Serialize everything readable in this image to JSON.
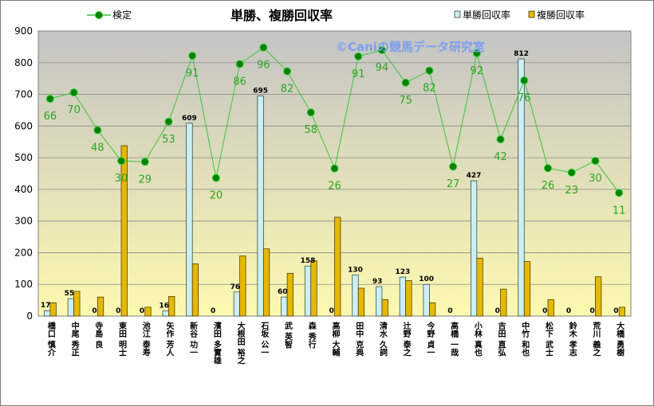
{
  "chart_data": {
    "type": "bar",
    "title": "単勝、複勝回収率",
    "watermark": "©Caniの競馬データ研究室",
    "ylim": [
      0,
      900
    ],
    "yticks": [
      0,
      100,
      200,
      300,
      400,
      500,
      600,
      700,
      800,
      900
    ],
    "categories": [
      "橋口 慎介",
      "中尾 秀正",
      "寺島 良",
      "東田 明士",
      "池江 泰寿",
      "矢作 芳人",
      "新谷 功一",
      "濱田 多實雄",
      "大根田 裕之",
      "石坂 公一",
      "武 英智",
      "森 秀行",
      "高柳 大輔",
      "田中 克典",
      "清水 久詞",
      "辻野 泰之",
      "今野 貞一",
      "高橋 一哉",
      "小林 真也",
      "吉田 直弘",
      "中竹 和也",
      "松下 武士",
      "鈴木 孝志",
      "荒川 義之",
      "大橋 勇樹"
    ],
    "series": [
      {
        "name": "単勝回収率",
        "type": "bar",
        "color": "#cdeef2",
        "values": [
          17,
          55,
          0,
          0,
          0,
          16,
          609,
          0,
          76,
          695,
          60,
          158,
          0,
          130,
          93,
          123,
          100,
          0,
          427,
          0,
          812,
          0,
          0,
          0,
          0
        ],
        "labels": [
          "17",
          "55",
          "0",
          "0",
          "0",
          "16",
          "609",
          "0",
          "76",
          "695",
          "60",
          "158",
          "0",
          "130",
          "93",
          "123",
          "100",
          "0",
          "427",
          "0",
          "812",
          "0",
          "0",
          "0",
          "0"
        ]
      },
      {
        "name": "複勝回収率",
        "type": "bar",
        "color": "#e6b800",
        "values": [
          42,
          78,
          60,
          538,
          28,
          62,
          165,
          0,
          190,
          212,
          135,
          175,
          312,
          88,
          52,
          112,
          42,
          0,
          183,
          85,
          172,
          52,
          0,
          124,
          28
        ]
      },
      {
        "name": "検定",
        "type": "line",
        "color": "#3cc33c",
        "marker_color": "#008000",
        "values": [
          686,
          706,
          587,
          490,
          487,
          614,
          822,
          436,
          796,
          848,
          773,
          643,
          466,
          820,
          840,
          737,
          775,
          472,
          830,
          558,
          744,
          467,
          453,
          490,
          389
        ],
        "labels": [
          "66",
          "70",
          "48",
          "30",
          "29",
          "53",
          "91",
          "20",
          "86",
          "96",
          "82",
          "58",
          "26",
          "91",
          "94",
          "75",
          "82",
          "27",
          "92",
          "42",
          "76",
          "26",
          "23",
          "30",
          "11"
        ]
      }
    ],
    "legend": {
      "placement": "top",
      "entries": [
        "検定",
        "単勝回収率",
        "複勝回収率"
      ]
    },
    "background_gradient": [
      "#c4c4c4",
      "#fdf9b0"
    ]
  }
}
